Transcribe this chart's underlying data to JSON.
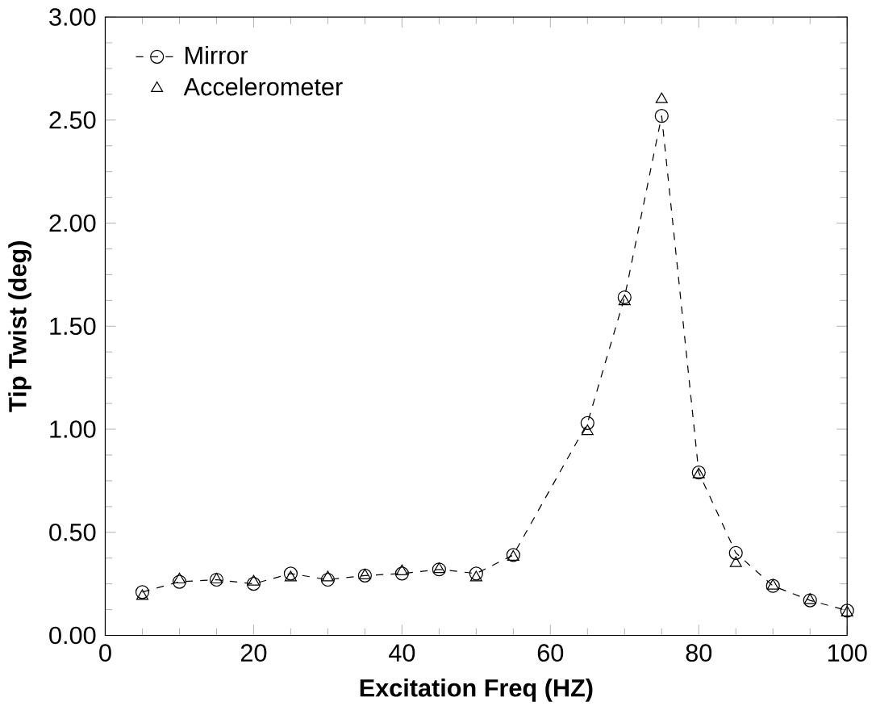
{
  "chart_data": {
    "type": "line",
    "xlabel": "Excitation Freq (HZ)",
    "ylabel": "Tip Twist (deg)",
    "x": [
      5,
      10,
      15,
      20,
      25,
      30,
      35,
      40,
      45,
      50,
      55,
      65,
      70,
      75,
      80,
      85,
      90,
      95,
      100
    ],
    "series": [
      {
        "name": "Mirror",
        "color": "#000000",
        "marker": "circle",
        "line_style": "dashed",
        "values": [
          0.21,
          0.26,
          0.27,
          0.25,
          0.3,
          0.27,
          0.29,
          0.3,
          0.32,
          0.3,
          0.39,
          1.03,
          1.64,
          2.52,
          0.79,
          0.4,
          0.24,
          0.17,
          0.12
        ]
      },
      {
        "name": "Accelerometer",
        "color": "#000000",
        "type": "scatter",
        "marker": "triangle",
        "values": [
          0.19,
          0.27,
          0.27,
          0.26,
          0.28,
          0.28,
          0.29,
          0.31,
          0.32,
          0.28,
          0.38,
          0.99,
          1.62,
          2.6,
          0.78,
          0.35,
          0.24,
          0.17,
          0.11
        ]
      }
    ],
    "xlim": [
      0,
      100
    ],
    "ylim": [
      0,
      3
    ],
    "xticks": [
      0,
      20,
      40,
      60,
      80,
      100
    ],
    "yticks": [
      {
        "value": 0,
        "label": "0.00"
      },
      {
        "value": 0.5,
        "label": "0.50"
      },
      {
        "value": 1,
        "label": "1.00"
      },
      {
        "value": 1.5,
        "label": "1.50"
      },
      {
        "value": 2,
        "label": "2.00"
      },
      {
        "value": 2.5,
        "label": "2.50"
      },
      {
        "value": 3,
        "label": "3.00"
      }
    ],
    "grid": false,
    "legend": "top left"
  }
}
